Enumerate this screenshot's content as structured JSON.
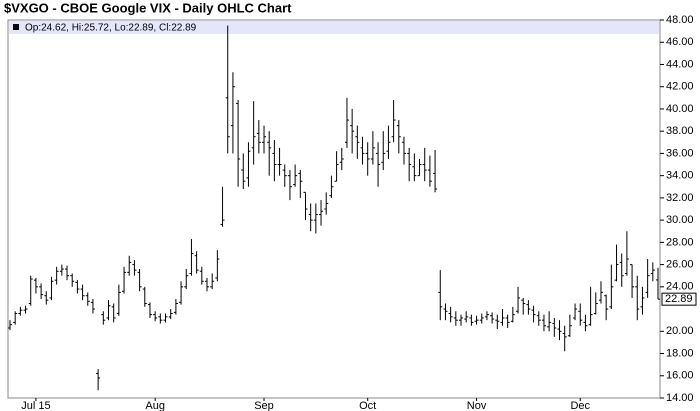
{
  "chart_data": {
    "type": "ohlc",
    "title": "$VXGO - CBOE Google VIX - Daily OHLC Chart",
    "legend_text": "Op:24.62, Hi:25.72, Lo:22.89, Cl:22.89",
    "color": "#000000",
    "legend_band_color": "#e6e6fa",
    "categories": [
      null,
      null,
      null,
      null,
      null,
      "Jul 15",
      null,
      null,
      null,
      null,
      null,
      null,
      null,
      null,
      null,
      null,
      null,
      null,
      null,
      null,
      null,
      null,
      null,
      null,
      null,
      null,
      null,
      null,
      "Aug",
      null,
      null,
      null,
      null,
      null,
      null,
      null,
      null,
      null,
      null,
      null,
      null,
      null,
      null,
      null,
      null,
      null,
      null,
      null,
      null,
      "Sep",
      null,
      null,
      null,
      null,
      null,
      null,
      null,
      null,
      null,
      null,
      null,
      null,
      null,
      null,
      null,
      null,
      null,
      null,
      null,
      "Oct",
      null,
      null,
      null,
      null,
      null,
      null,
      null,
      null,
      null,
      null,
      null,
      null,
      null,
      null,
      null,
      null,
      null,
      null,
      null,
      null,
      "Nov",
      null,
      null,
      null,
      null,
      null,
      null,
      null,
      null,
      null,
      null,
      null,
      null,
      null,
      null,
      null,
      null,
      null,
      null,
      null,
      "Dec",
      null,
      null,
      null,
      null,
      null,
      null,
      null,
      null,
      null,
      null,
      null,
      null,
      null,
      null,
      null
    ],
    "open": [
      20.3,
      20.8,
      21.6,
      21.9,
      22.5,
      24.6,
      24.0,
      23.2,
      23.0,
      24.6,
      25.4,
      25.6,
      25.0,
      24.4,
      23.8,
      23.2,
      22.6,
      16.2,
      21.5,
      21.2,
      22.2,
      21.6,
      23.6,
      25.3,
      26.0,
      25.3,
      23.8,
      22.4,
      21.5,
      21.3,
      21.0,
      21.3,
      21.7,
      22.6,
      24.0,
      25.2,
      26.8,
      25.4,
      24.5,
      24.0,
      24.8,
      29.6,
      41.0,
      38.5,
      40.5,
      34.5,
      33.8,
      36.5,
      37.8,
      37.0,
      37.0,
      36.0,
      35.0,
      34.5,
      34.0,
      33.2,
      34.2,
      32.5,
      30.5,
      30.0,
      30.5,
      31.0,
      32.2,
      33.5,
      35.2,
      37.0,
      38.5,
      37.5,
      36.5,
      36.0,
      35.5,
      36.0,
      35.2,
      36.2,
      37.5,
      38.5,
      37.0,
      36.0,
      34.8,
      34.0,
      35.0,
      34.5,
      34.2,
      23.5,
      22.0,
      21.6,
      21.2,
      21.0,
      21.1,
      21.2,
      20.9,
      21.0,
      21.3,
      21.4,
      21.0,
      20.8,
      21.2,
      20.9,
      21.8,
      22.8,
      22.4,
      21.9,
      21.4,
      21.0,
      20.4,
      20.7,
      20.2,
      19.8,
      19.6,
      21.2,
      21.8,
      20.8,
      20.6,
      21.6,
      22.8,
      23.2,
      22.2,
      24.6,
      26.2,
      25.2,
      26.0,
      24.0,
      22.2,
      23.5,
      25.2,
      24.62
    ],
    "high": [
      21.0,
      21.8,
      22.2,
      22.3,
      25.0,
      24.8,
      24.3,
      23.6,
      24.9,
      25.8,
      26.0,
      25.9,
      25.2,
      24.6,
      24.2,
      23.5,
      22.9,
      16.6,
      21.8,
      22.8,
      22.5,
      24.2,
      25.8,
      26.8,
      26.4,
      25.6,
      24.0,
      22.6,
      21.8,
      21.6,
      21.6,
      22.0,
      22.9,
      24.5,
      25.6,
      28.3,
      27.2,
      25.8,
      24.8,
      25.2,
      27.3,
      33.0,
      47.5,
      43.3,
      40.8,
      36.0,
      37.0,
      40.7,
      39.0,
      38.5,
      38.0,
      37.2,
      36.5,
      35.0,
      34.5,
      35.0,
      34.5,
      32.5,
      31.5,
      31.5,
      31.8,
      32.5,
      34.0,
      36.2,
      36.5,
      41.0,
      40.0,
      38.5,
      37.5,
      37.0,
      38.0,
      37.0,
      38.0,
      38.5,
      40.8,
      39.0,
      37.5,
      36.5,
      36.0,
      35.5,
      36.5,
      35.8,
      36.3,
      25.5,
      22.5,
      22.2,
      21.8,
      21.5,
      21.8,
      21.5,
      21.4,
      21.6,
      21.8,
      21.7,
      21.5,
      22.0,
      21.5,
      22.2,
      24.0,
      23.0,
      22.8,
      22.3,
      21.8,
      21.5,
      21.8,
      21.2,
      21.0,
      20.5,
      21.5,
      22.5,
      22.5,
      21.5,
      24.0,
      23.5,
      24.5,
      23.3,
      26.0,
      27.8,
      27.0,
      29.0,
      26.0,
      25.0,
      24.0,
      26.5,
      26.2,
      25.72
    ],
    "low": [
      20.1,
      20.6,
      21.4,
      21.6,
      22.3,
      23.4,
      22.9,
      22.4,
      22.8,
      24.2,
      25.0,
      24.6,
      24.0,
      23.4,
      22.8,
      22.3,
      21.6,
      14.7,
      20.6,
      21.0,
      20.8,
      21.4,
      23.4,
      25.0,
      25.0,
      23.6,
      22.2,
      21.2,
      20.9,
      20.7,
      20.8,
      21.1,
      21.5,
      22.4,
      23.8,
      25.0,
      25.2,
      24.2,
      23.6,
      23.8,
      24.5,
      29.4,
      36.0,
      36.0,
      33.0,
      32.8,
      33.0,
      35.0,
      36.0,
      36.0,
      34.0,
      33.5,
      34.0,
      33.0,
      31.8,
      33.0,
      32.0,
      30.0,
      29.0,
      28.8,
      29.5,
      30.5,
      32.0,
      33.5,
      34.5,
      36.5,
      36.0,
      35.5,
      35.0,
      34.0,
      35.0,
      33.0,
      34.5,
      35.5,
      37.0,
      36.0,
      35.0,
      33.5,
      33.5,
      34.0,
      33.5,
      33.0,
      32.5,
      21.0,
      21.0,
      20.8,
      20.5,
      20.5,
      20.8,
      20.5,
      20.6,
      20.7,
      21.0,
      20.7,
      20.2,
      20.5,
      20.3,
      20.8,
      21.6,
      21.5,
      21.5,
      20.8,
      20.5,
      20.0,
      20.0,
      19.5,
      19.2,
      18.2,
      19.5,
      21.0,
      20.5,
      20.0,
      20.5,
      21.5,
      22.5,
      21.0,
      22.0,
      24.5,
      24.0,
      25.0,
      23.0,
      21.0,
      21.5,
      23.0,
      24.5,
      22.89
    ],
    "close": [
      20.6,
      21.6,
      21.9,
      22.0,
      24.7,
      24.0,
      23.3,
      22.8,
      24.5,
      25.4,
      25.6,
      25.0,
      24.5,
      23.8,
      23.2,
      22.7,
      22.0,
      15.8,
      21.0,
      22.3,
      21.2,
      23.5,
      25.3,
      26.2,
      25.5,
      24.0,
      22.5,
      21.5,
      21.2,
      21.0,
      21.3,
      21.6,
      22.5,
      24.0,
      25.0,
      27.0,
      25.5,
      24.5,
      24.0,
      24.5,
      26.5,
      30.0,
      37.5,
      42.0,
      35.5,
      33.5,
      36.2,
      37.5,
      37.0,
      37.5,
      36.5,
      35.0,
      35.0,
      34.0,
      33.0,
      34.0,
      33.5,
      31.0,
      30.0,
      30.5,
      30.8,
      31.5,
      33.0,
      35.0,
      35.5,
      39.0,
      38.0,
      37.0,
      36.0,
      35.5,
      36.5,
      35.0,
      36.0,
      37.0,
      39.0,
      37.5,
      36.0,
      35.0,
      34.0,
      35.0,
      34.5,
      33.5,
      32.8,
      22.2,
      21.8,
      21.3,
      21.0,
      21.2,
      21.3,
      20.8,
      21.0,
      21.2,
      21.5,
      21.1,
      20.9,
      21.2,
      20.8,
      21.5,
      23.0,
      22.5,
      22.0,
      21.5,
      21.0,
      20.5,
      20.8,
      20.3,
      20.0,
      19.5,
      20.5,
      22.0,
      21.0,
      20.5,
      21.5,
      22.5,
      23.5,
      22.0,
      24.0,
      26.0,
      25.0,
      26.5,
      24.0,
      22.0,
      23.0,
      25.0,
      25.5,
      22.89
    ],
    "last_label": {
      "value": 22.89,
      "label": "22.89"
    },
    "ylim": [
      14,
      48
    ],
    "yticks": [
      {
        "value": 14,
        "label": "14.00"
      },
      {
        "value": 16,
        "label": "16.00"
      },
      {
        "value": 18,
        "label": "18.00"
      },
      {
        "value": 20,
        "label": "20.00"
      },
      {
        "value": 24,
        "label": "24.00"
      },
      {
        "value": 26,
        "label": "26.00"
      },
      {
        "value": 28,
        "label": "28.00"
      },
      {
        "value": 30,
        "label": "30.00"
      },
      {
        "value": 32,
        "label": "32.00"
      },
      {
        "value": 34,
        "label": "34.00"
      },
      {
        "value": 36,
        "label": "36.00"
      },
      {
        "value": 38,
        "label": "38.00"
      },
      {
        "value": 40,
        "label": "40.00"
      },
      {
        "value": 42,
        "label": "42.00"
      },
      {
        "value": 44,
        "label": "44.00"
      },
      {
        "value": 46,
        "label": "46.00"
      },
      {
        "value": 48,
        "label": "48.00"
      }
    ],
    "grid": false
  }
}
